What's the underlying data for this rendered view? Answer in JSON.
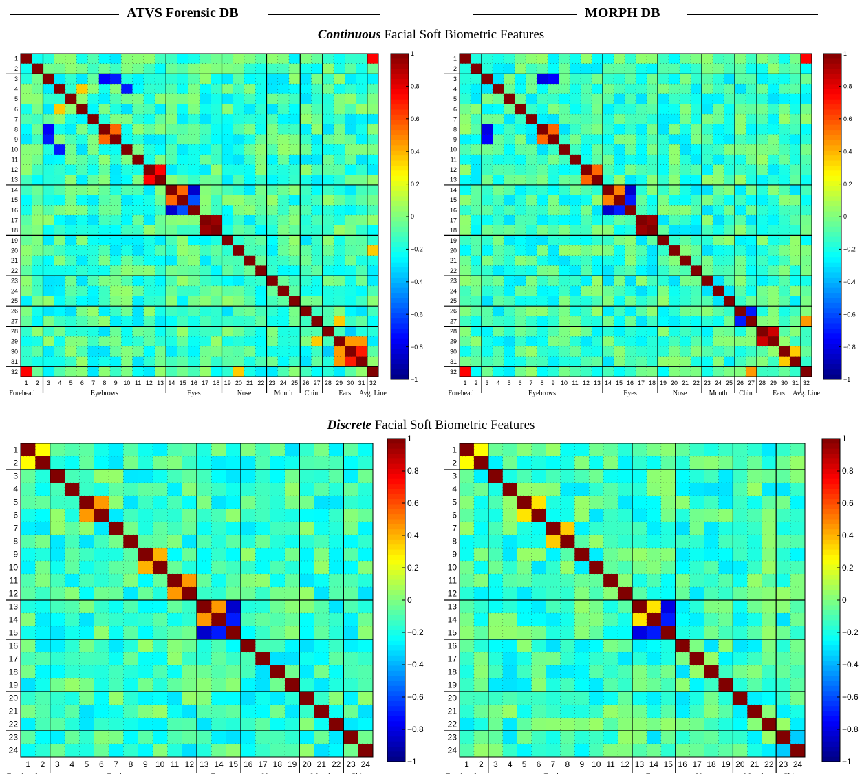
{
  "headers": {
    "left": "ATVS Forensic DB",
    "right": "MORPH DB",
    "continuous_em": "Continuous",
    "continuous_rest": " Facial Soft Biometric Features",
    "discrete_em": "Discrete",
    "discrete_rest": " Facial Soft Biometric Features"
  },
  "colorbar": {
    "colormap": "jet",
    "range": [
      -1,
      1
    ],
    "ticks": [
      "1",
      "0.8",
      "0.6",
      "0.4",
      "0.2",
      "0",
      "−0.2",
      "−0.4",
      "−0.6",
      "−0.8",
      "−1"
    ]
  },
  "chart_data": [
    {
      "type": "heatmap",
      "title": "ATVS Forensic DB — Continuous",
      "n": 32,
      "groups": [
        {
          "name": "Forehead",
          "start": 1,
          "end": 2
        },
        {
          "name": "Eyebrows",
          "start": 3,
          "end": 13
        },
        {
          "name": "Eyes",
          "start": 14,
          "end": 18
        },
        {
          "name": "Nose",
          "start": 19,
          "end": 22
        },
        {
          "name": "Mouth",
          "start": 23,
          "end": 25
        },
        {
          "name": "Chin",
          "start": 26,
          "end": 27
        },
        {
          "name": "Ears",
          "start": 28,
          "end": 31
        },
        {
          "name": "Avg. Line",
          "start": 32,
          "end": 32
        }
      ],
      "notable_cells": [
        {
          "i": 1,
          "j": 32,
          "v": 0.75
        },
        {
          "i": 3,
          "j": 8,
          "v": -0.75
        },
        {
          "i": 3,
          "j": 9,
          "v": -0.7
        },
        {
          "i": 4,
          "j": 10,
          "v": -0.7
        },
        {
          "i": 4,
          "j": 6,
          "v": 0.35
        },
        {
          "i": 8,
          "j": 9,
          "v": 0.55
        },
        {
          "i": 12,
          "j": 13,
          "v": 0.75
        },
        {
          "i": 14,
          "j": 15,
          "v": 0.55
        },
        {
          "i": 14,
          "j": 16,
          "v": -0.85
        },
        {
          "i": 15,
          "j": 16,
          "v": -0.6
        },
        {
          "i": 17,
          "j": 18,
          "v": 0.95
        },
        {
          "i": 29,
          "j": 30,
          "v": 0.45
        },
        {
          "i": 29,
          "j": 31,
          "v": 0.45
        },
        {
          "i": 30,
          "j": 31,
          "v": 0.7
        },
        {
          "i": 28,
          "j": 30,
          "v": -0.35
        },
        {
          "i": 20,
          "j": 32,
          "v": 0.35
        },
        {
          "i": 27,
          "j": 29,
          "v": 0.35
        }
      ]
    },
    {
      "type": "heatmap",
      "title": "MORPH DB — Continuous",
      "n": 32,
      "groups": [
        {
          "name": "Forehead",
          "start": 1,
          "end": 2
        },
        {
          "name": "Eyebrows",
          "start": 3,
          "end": 13
        },
        {
          "name": "Eyes",
          "start": 14,
          "end": 18
        },
        {
          "name": "Nose",
          "start": 19,
          "end": 22
        },
        {
          "name": "Mouth",
          "start": 23,
          "end": 25
        },
        {
          "name": "Chin",
          "start": 26,
          "end": 27
        },
        {
          "name": "Ears",
          "start": 28,
          "end": 31
        },
        {
          "name": "Avg. Line",
          "start": 32,
          "end": 32
        }
      ],
      "notable_cells": [
        {
          "i": 1,
          "j": 32,
          "v": 0.75
        },
        {
          "i": 3,
          "j": 8,
          "v": -0.8
        },
        {
          "i": 3,
          "j": 9,
          "v": -0.75
        },
        {
          "i": 8,
          "j": 9,
          "v": 0.55
        },
        {
          "i": 12,
          "j": 13,
          "v": 0.55
        },
        {
          "i": 14,
          "j": 15,
          "v": 0.5
        },
        {
          "i": 14,
          "j": 16,
          "v": -0.85
        },
        {
          "i": 15,
          "j": 16,
          "v": -0.7
        },
        {
          "i": 17,
          "j": 18,
          "v": 0.95
        },
        {
          "i": 26,
          "j": 27,
          "v": -0.7
        },
        {
          "i": 28,
          "j": 29,
          "v": 0.85
        },
        {
          "i": 30,
          "j": 31,
          "v": 0.35
        },
        {
          "i": 27,
          "j": 32,
          "v": 0.45
        }
      ]
    },
    {
      "type": "heatmap",
      "title": "ATVS Forensic DB — Discrete",
      "n": 24,
      "groups": [
        {
          "name": "Forehead",
          "start": 1,
          "end": 2
        },
        {
          "name": "Eyebrows",
          "start": 3,
          "end": 12
        },
        {
          "name": "Eyes",
          "start": 13,
          "end": 15
        },
        {
          "name": "Nose",
          "start": 16,
          "end": 19
        },
        {
          "name": "Mouth",
          "start": 20,
          "end": 22
        },
        {
          "name": "Chin",
          "start": 23,
          "end": 24
        }
      ],
      "notable_cells": [
        {
          "i": 5,
          "j": 6,
          "v": 0.45
        },
        {
          "i": 9,
          "j": 10,
          "v": 0.4
        },
        {
          "i": 11,
          "j": 12,
          "v": 0.45
        },
        {
          "i": 13,
          "j": 14,
          "v": 0.45
        },
        {
          "i": 13,
          "j": 15,
          "v": -0.85
        },
        {
          "i": 14,
          "j": 15,
          "v": -0.7
        },
        {
          "i": 1,
          "j": 2,
          "v": 0.25
        }
      ]
    },
    {
      "type": "heatmap",
      "title": "MORPH DB — Discrete",
      "n": 24,
      "groups": [
        {
          "name": "Forehead",
          "start": 1,
          "end": 2
        },
        {
          "name": "Eyebrows",
          "start": 3,
          "end": 12
        },
        {
          "name": "Eyes",
          "start": 13,
          "end": 15
        },
        {
          "name": "Nose",
          "start": 16,
          "end": 19
        },
        {
          "name": "Mouth",
          "start": 20,
          "end": 22
        },
        {
          "name": "Chin",
          "start": 23,
          "end": 24
        }
      ],
      "notable_cells": [
        {
          "i": 1,
          "j": 2,
          "v": 0.25
        },
        {
          "i": 5,
          "j": 6,
          "v": 0.3
        },
        {
          "i": 7,
          "j": 8,
          "v": 0.35
        },
        {
          "i": 13,
          "j": 14,
          "v": 0.3
        },
        {
          "i": 13,
          "j": 15,
          "v": -0.8
        },
        {
          "i": 14,
          "j": 15,
          "v": -0.7
        },
        {
          "i": 23,
          "j": 24,
          "v": -0.35
        }
      ]
    }
  ]
}
